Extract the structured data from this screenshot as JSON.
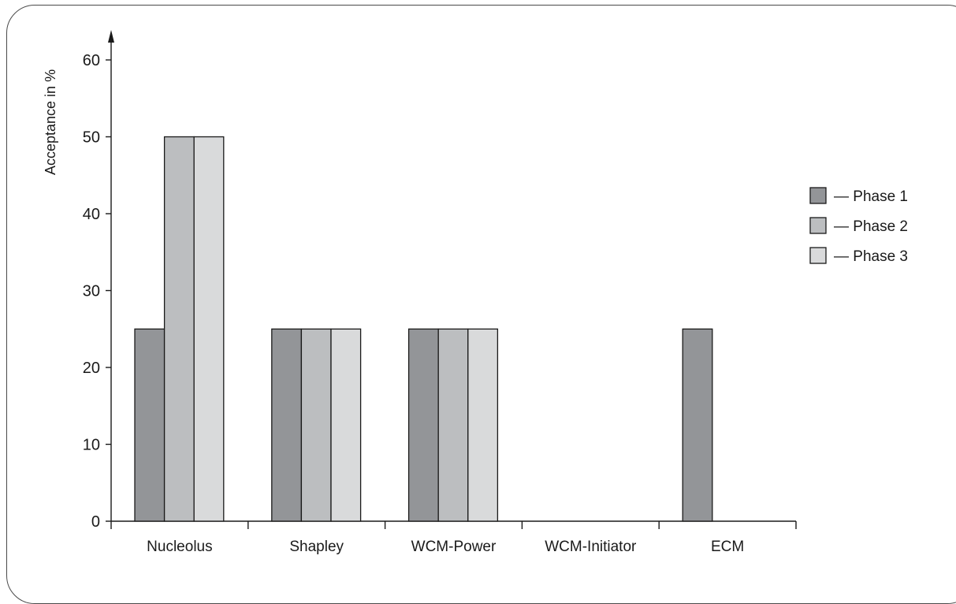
{
  "chart_data": {
    "type": "bar",
    "title": "",
    "xlabel": "",
    "ylabel": "Acceptance in %",
    "ylim": [
      0,
      60
    ],
    "yticks": [
      0,
      10,
      20,
      30,
      40,
      50,
      60
    ],
    "categories": [
      "Nucleolus",
      "Shapley",
      "WCM-Power",
      "WCM-Initiator",
      "ECM"
    ],
    "series": [
      {
        "name": "Phase 1",
        "color": "#939598",
        "values": [
          25,
          25,
          25,
          0,
          25
        ]
      },
      {
        "name": "Phase 2",
        "color": "#bcbec0",
        "values": [
          50,
          25,
          25,
          0,
          0
        ]
      },
      {
        "name": "Phase 3",
        "color": "#d9dadb",
        "values": [
          50,
          25,
          25,
          0,
          0
        ]
      }
    ],
    "legend_position": "right",
    "legend_prefix": "— ",
    "grid": false
  }
}
